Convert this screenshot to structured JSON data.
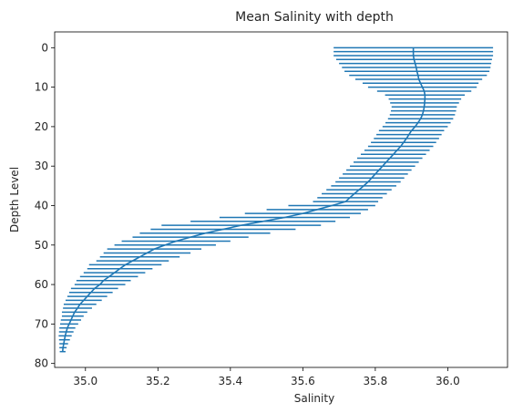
{
  "chart_data": {
    "type": "line",
    "title": "Mean Salinity with depth",
    "xlabel": "Salinity",
    "ylabel": "Depth Level",
    "xlim": [
      34.915,
      36.165
    ],
    "ylim": [
      81,
      -4
    ],
    "y_inverted": true,
    "grid": false,
    "x_ticks": [
      35.0,
      35.2,
      35.4,
      35.6,
      35.8,
      36.0
    ],
    "x_tick_labels": [
      "35.0",
      "35.2",
      "35.4",
      "35.6",
      "35.8",
      "36.0"
    ],
    "y_ticks": [
      0,
      10,
      20,
      30,
      40,
      50,
      60,
      70,
      80
    ],
    "y_tick_labels": [
      "0",
      "10",
      "20",
      "30",
      "40",
      "50",
      "60",
      "70",
      "80"
    ],
    "color": "#1f77b4",
    "series": [
      {
        "depth": [
          0,
          1,
          2,
          3,
          4,
          5,
          6,
          7,
          8,
          9,
          10,
          11,
          12,
          13,
          14,
          15,
          16,
          17,
          18,
          19,
          20,
          21,
          22,
          23,
          24,
          25,
          26,
          27,
          28,
          29,
          30,
          31,
          32,
          33,
          34,
          35,
          36,
          37,
          38,
          39,
          40,
          41,
          42,
          43,
          44,
          45,
          46,
          47,
          48,
          49,
          50,
          51,
          52,
          53,
          54,
          55,
          56,
          57,
          58,
          59,
          60,
          61,
          62,
          63,
          64,
          65,
          66,
          67,
          68,
          69,
          70,
          71,
          72,
          73,
          74,
          75,
          76,
          77
        ],
        "mean": [
          35.905,
          35.905,
          35.905,
          35.907,
          35.91,
          35.913,
          35.915,
          35.918,
          35.92,
          35.925,
          35.93,
          35.935,
          35.937,
          35.937,
          35.936,
          35.935,
          35.933,
          35.93,
          35.925,
          35.918,
          35.91,
          35.9,
          35.893,
          35.886,
          35.878,
          35.87,
          35.86,
          35.85,
          35.84,
          35.83,
          35.82,
          35.81,
          35.8,
          35.79,
          35.78,
          35.768,
          35.755,
          35.742,
          35.73,
          35.718,
          35.68,
          35.64,
          35.6,
          35.55,
          35.49,
          35.43,
          35.38,
          35.33,
          35.29,
          35.25,
          35.22,
          35.19,
          35.17,
          35.15,
          35.13,
          35.11,
          35.095,
          35.08,
          35.065,
          35.05,
          35.04,
          35.025,
          35.015,
          35.005,
          34.995,
          34.985,
          34.978,
          34.97,
          34.965,
          34.96,
          34.955,
          34.95,
          34.947,
          34.944,
          34.942,
          34.94,
          34.938,
          34.937
        ],
        "xerr": [
          0.22,
          0.22,
          0.22,
          0.215,
          0.21,
          0.205,
          0.2,
          0.19,
          0.175,
          0.16,
          0.15,
          0.13,
          0.11,
          0.1,
          0.095,
          0.09,
          0.09,
          0.09,
          0.09,
          0.09,
          0.09,
          0.09,
          0.09,
          0.09,
          0.09,
          0.09,
          0.09,
          0.09,
          0.09,
          0.09,
          0.09,
          0.09,
          0.09,
          0.09,
          0.09,
          0.09,
          0.09,
          0.09,
          0.09,
          0.09,
          0.12,
          0.14,
          0.16,
          0.18,
          0.2,
          0.22,
          0.2,
          0.18,
          0.16,
          0.15,
          0.14,
          0.13,
          0.12,
          0.11,
          0.1,
          0.1,
          0.09,
          0.085,
          0.08,
          0.075,
          0.07,
          0.065,
          0.06,
          0.055,
          0.05,
          0.045,
          0.04,
          0.035,
          0.03,
          0.028,
          0.025,
          0.022,
          0.02,
          0.018,
          0.015,
          0.012,
          0.01,
          0.008
        ]
      }
    ]
  }
}
